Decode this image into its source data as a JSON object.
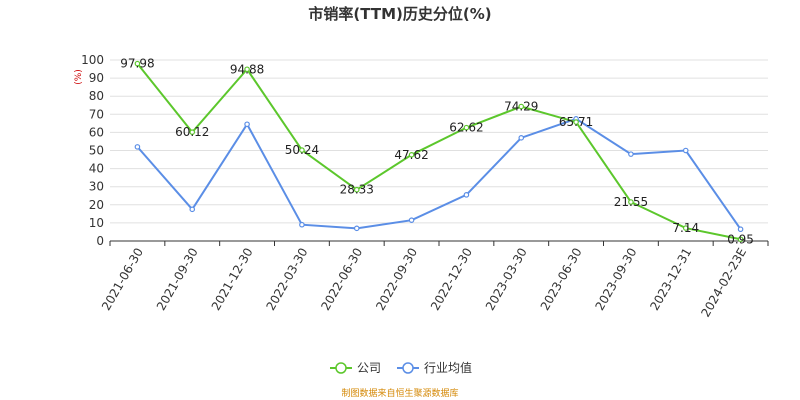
{
  "chart_data": {
    "type": "line",
    "title": "市销率(TTM)历史分位(%)",
    "y_unit": "(%)",
    "ylim": [
      0,
      100
    ],
    "yticks": [
      0,
      10,
      20,
      30,
      40,
      50,
      60,
      70,
      80,
      90,
      100
    ],
    "categories": [
      "2021-06-30",
      "2021-09-30",
      "2021-12-30",
      "2022-03-30",
      "2022-06-30",
      "2022-09-30",
      "2022-12-30",
      "2023-03-30",
      "2023-06-30",
      "2023-09-30",
      "2023-12-31",
      "2024-02-23E"
    ],
    "series": [
      {
        "name": "公司",
        "color": "#5cc72c",
        "values": [
          97.98,
          60.12,
          94.88,
          50.24,
          28.33,
          47.62,
          62.62,
          74.29,
          65.71,
          21.55,
          7.14,
          0.95
        ],
        "labels": [
          "97.98",
          "60.12",
          "94.88",
          "50.24",
          "28.33",
          "47.62",
          "62.62",
          "74.29",
          "65.71",
          "21.55",
          "7.14",
          "0.95"
        ]
      },
      {
        "name": "行业均值",
        "color": "#5b8ee6",
        "values": [
          52,
          17.5,
          64.5,
          9,
          7,
          11.5,
          25.5,
          57,
          67.5,
          48,
          50,
          6.5
        ]
      }
    ],
    "grid": true,
    "legend_position": "bottom-center"
  },
  "footer": {
    "source": "制图数据来自恒生聚源数据库"
  }
}
